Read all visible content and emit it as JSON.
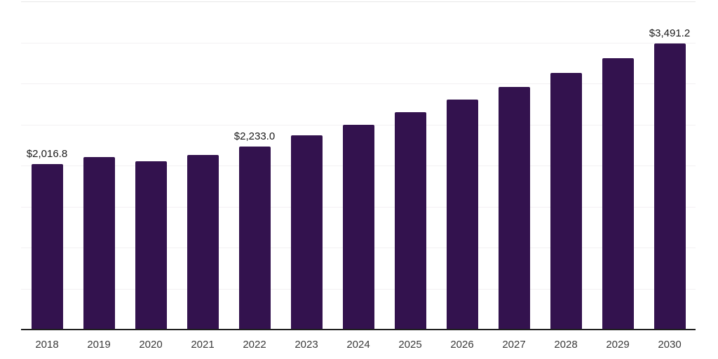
{
  "chart_data": {
    "type": "bar",
    "categories": [
      "2018",
      "2019",
      "2020",
      "2021",
      "2022",
      "2023",
      "2024",
      "2025",
      "2026",
      "2027",
      "2028",
      "2029",
      "2030"
    ],
    "values": [
      2016.8,
      2105,
      2050,
      2132,
      2233.0,
      2365,
      2500,
      2648,
      2805,
      2958,
      3125,
      3312,
      3491.2
    ],
    "value_labels": [
      "$2,016.8",
      null,
      null,
      null,
      "$2,233.0",
      null,
      null,
      null,
      null,
      null,
      null,
      null,
      "$3,491.2"
    ],
    "title": "",
    "xlabel": "",
    "ylabel": "",
    "ylim": [
      0,
      4000
    ],
    "gridline_step": 500,
    "grid": true,
    "legend": false,
    "y_axis_labels_visible": false,
    "colors": {
      "bar": "#33124e",
      "axis_line": "#1f1f1f",
      "gridline": "#f3f1f3",
      "plot_top_border": "#e8e8e8",
      "value_label": "#1a1a1a",
      "tick_label": "#3a3a3a",
      "background": "#ffffff"
    }
  }
}
